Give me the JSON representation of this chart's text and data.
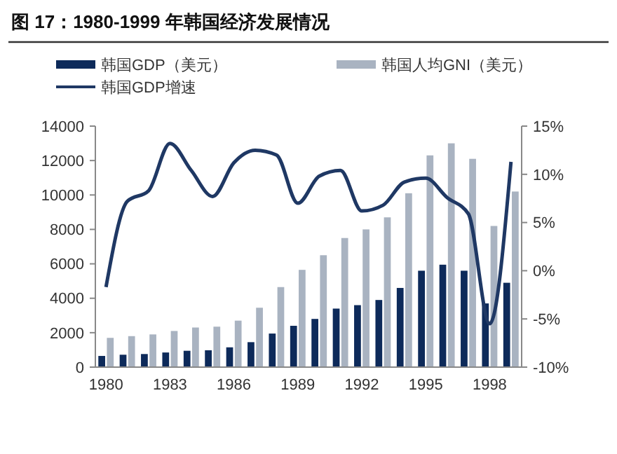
{
  "chart_data": {
    "type": "bar",
    "title": "图 17：1980-1999 年韩国经济发展情况",
    "categories": [
      "1980",
      null,
      null,
      "1983",
      null,
      null,
      "1986",
      null,
      null,
      "1989",
      null,
      null,
      "1992",
      null,
      null,
      "1995",
      null,
      null,
      "1998",
      null
    ],
    "series": [
      {
        "name": "韩国GDP（美元）",
        "color": "#0d2a5a",
        "values": [
          650,
          720,
          760,
          850,
          950,
          980,
          1150,
          1450,
          1950,
          2400,
          2800,
          3400,
          3600,
          3900,
          4600,
          5600,
          5950,
          5600,
          3700,
          4900
        ]
      },
      {
        "name": "韩国人均GNI（美元）",
        "color": "#a9b3c1",
        "values": [
          1700,
          1800,
          1900,
          2100,
          2300,
          2350,
          2700,
          3450,
          4650,
          5650,
          6500,
          7500,
          8000,
          8700,
          10100,
          12300,
          13000,
          12100,
          8200,
          10200
        ]
      },
      {
        "name": "韩国GDP增速",
        "type": "line",
        "axis": "y2",
        "color": "#1f3864",
        "values": [
          -1.7,
          7.2,
          8.3,
          13.2,
          10.4,
          7.7,
          11.2,
          12.5,
          12.0,
          7.0,
          9.8,
          10.4,
          6.2,
          6.8,
          9.2,
          9.6,
          7.6,
          5.9,
          -5.5,
          11.3
        ]
      }
    ],
    "ylim": [
      0,
      14000
    ],
    "yticks": [
      0,
      2000,
      4000,
      6000,
      8000,
      10000,
      12000,
      14000
    ],
    "y2lim": [
      -10,
      15
    ],
    "y2ticks": [
      {
        "value": -10,
        "label": "-10%"
      },
      {
        "value": -5,
        "label": "-5%"
      },
      {
        "value": 0,
        "label": "0%"
      },
      {
        "value": 5,
        "label": "5%"
      },
      {
        "value": 10,
        "label": "10%"
      },
      {
        "value": 15,
        "label": "15%"
      }
    ],
    "legend": "top",
    "grid": false
  }
}
